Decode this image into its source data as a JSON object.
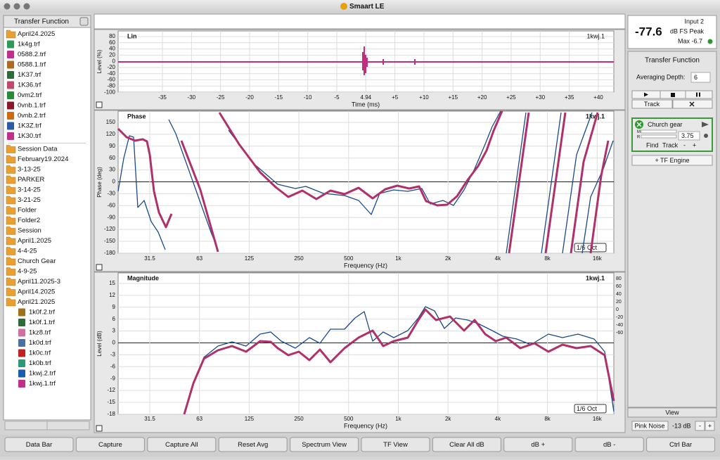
{
  "window": {
    "title": "Smaart LE"
  },
  "sidebar": {
    "title": "Transfer Function",
    "items": [
      {
        "label": "April24.2025",
        "kind": "folder",
        "level": 0
      },
      {
        "label": "1k4g.trf",
        "kind": "file",
        "color": "#2e9a5a",
        "level": 0
      },
      {
        "label": "0588.2.trf",
        "kind": "file",
        "color": "#c0308a",
        "level": 0
      },
      {
        "label": "0588.1.trf",
        "kind": "file",
        "color": "#b06a20",
        "level": 0
      },
      {
        "label": "1K37.trf",
        "kind": "file",
        "color": "#2f6a3a",
        "level": 0
      },
      {
        "label": "1K36.trf",
        "kind": "file",
        "color": "#c04a6a",
        "level": 0
      },
      {
        "label": "0vm2.trf",
        "kind": "file",
        "color": "#2a8a3a",
        "level": 0
      },
      {
        "label": "0vnb.1.trf",
        "kind": "file",
        "color": "#8a1a2a",
        "level": 0
      },
      {
        "label": "0vnb.2.trf",
        "kind": "file",
        "color": "#d06a10",
        "level": 0
      },
      {
        "label": "1K3Z.trf",
        "kind": "file",
        "color": "#2a5aa8",
        "level": 0
      },
      {
        "label": "1K30.trf",
        "kind": "file",
        "color": "#c0308a",
        "level": 0
      },
      {
        "label": "Session Data",
        "kind": "folder",
        "level": 0
      },
      {
        "label": "February19.2024",
        "kind": "folder",
        "level": 0
      },
      {
        "label": "3-13-25",
        "kind": "folder",
        "level": 0
      },
      {
        "label": "PARKER",
        "kind": "folder",
        "level": 0
      },
      {
        "label": "3-14-25",
        "kind": "folder",
        "level": 0
      },
      {
        "label": "3-21-25",
        "kind": "folder",
        "level": 0
      },
      {
        "label": "Folder",
        "kind": "folder",
        "level": 0
      },
      {
        "label": "Folder2",
        "kind": "folder",
        "level": 0
      },
      {
        "label": "Session",
        "kind": "folder",
        "level": 0
      },
      {
        "label": "April1.2025",
        "kind": "folder",
        "level": 0
      },
      {
        "label": "4-4-25",
        "kind": "folder",
        "level": 0
      },
      {
        "label": "Church Gear",
        "kind": "folder",
        "level": 0
      },
      {
        "label": "4-9-25",
        "kind": "folder",
        "level": 0
      },
      {
        "label": "April11.2025-3",
        "kind": "folder",
        "level": 0
      },
      {
        "label": "April14.2025",
        "kind": "folder",
        "level": 0
      },
      {
        "label": "April21.2025",
        "kind": "folder",
        "level": 0
      },
      {
        "label": "1k0f.2.trf",
        "kind": "file",
        "color": "#a0701a",
        "level": 1
      },
      {
        "label": "1k0f.1.trf",
        "kind": "file",
        "color": "#2f6a3a",
        "level": 1
      },
      {
        "label": "1kz8.trf",
        "kind": "file",
        "color": "#d070a0",
        "level": 1
      },
      {
        "label": "1k0d.trf",
        "kind": "file",
        "color": "#4a70a0",
        "level": 1
      },
      {
        "label": "1k0c.trf",
        "kind": "file",
        "color": "#c02020",
        "level": 1
      },
      {
        "label": "1k0b.trf",
        "kind": "file",
        "color": "#2a9a7a",
        "level": 1
      },
      {
        "label": "1kwj.2.trf",
        "kind": "file",
        "color": "#1a5ab0",
        "level": 1
      },
      {
        "label": "1kwj.1.trf",
        "kind": "file",
        "color": "#c0308a",
        "level": 1
      }
    ]
  },
  "impulse": {
    "label": "Lin",
    "trace": "1kwj.1",
    "y_axis": "Level (%)",
    "x_axis": "Time (ms)",
    "yticks": [
      "80",
      "60",
      "40",
      "20",
      "0",
      "-20",
      "-40",
      "-60",
      "-80",
      "-100"
    ],
    "xticks": [
      "-35",
      "-30",
      "-25",
      "-20",
      "-15",
      "-10",
      "-5",
      "4.94",
      "+5",
      "+10",
      "+15",
      "+20",
      "+25",
      "+30",
      "+35",
      "+40"
    ]
  },
  "phase": {
    "label": "Phase",
    "trace": "1kwj.1",
    "y_axis": "Phase (deg)",
    "x_axis": "Frequency (Hz)",
    "smoothing": "1/6 Oct",
    "yticks": [
      "150",
      "120",
      "90",
      "60",
      "30",
      "0",
      "-30",
      "-60",
      "-90",
      "-120",
      "-150",
      "-180"
    ],
    "xticks": [
      "31.5",
      "63",
      "125",
      "250",
      "500",
      "1k",
      "2k",
      "4k",
      "8k",
      "16k"
    ]
  },
  "magnitude": {
    "label": "Magnitude",
    "trace": "1kwj.1",
    "y_axis": "Level (dB)",
    "x_axis": "Frequency (Hz)",
    "smoothing": "1/6 Oct",
    "yticks": [
      "15",
      "12",
      "9",
      "6",
      "3",
      "0",
      "-3",
      "-6",
      "-9",
      "-12",
      "-15",
      "-18"
    ],
    "xticks": [
      "31.5",
      "63",
      "125",
      "250",
      "500",
      "1k",
      "2k",
      "4k",
      "8k",
      "16k"
    ],
    "right_scale": [
      "80",
      "60",
      "40",
      "20",
      "0",
      "-20",
      "-40",
      "-60"
    ]
  },
  "meter": {
    "value": "-77.6",
    "input": "Input 2",
    "unit": "dB FS Peak",
    "max": "Max -6.7"
  },
  "control": {
    "title": "Transfer Function",
    "averaging_label": "Averaging Depth:",
    "averaging_value": "6",
    "track": "Track",
    "engine": {
      "name": "Church gear",
      "m": "M",
      "r": "R",
      "delay": "3.75",
      "find": "Find",
      "track": "Track",
      "minus": "-",
      "plus": "+"
    },
    "add_engine": "+ TF Engine",
    "view": "View"
  },
  "generator": {
    "label": "Pink Noise",
    "level": "-13 dB",
    "minus": "-",
    "plus": "+"
  },
  "toolbar": [
    "Data Bar",
    "Capture",
    "Capture All",
    "Reset Avg",
    "Spectrum View",
    "TF View",
    "Clear All dB",
    "dB +",
    "dB -",
    "Ctrl Bar"
  ]
}
